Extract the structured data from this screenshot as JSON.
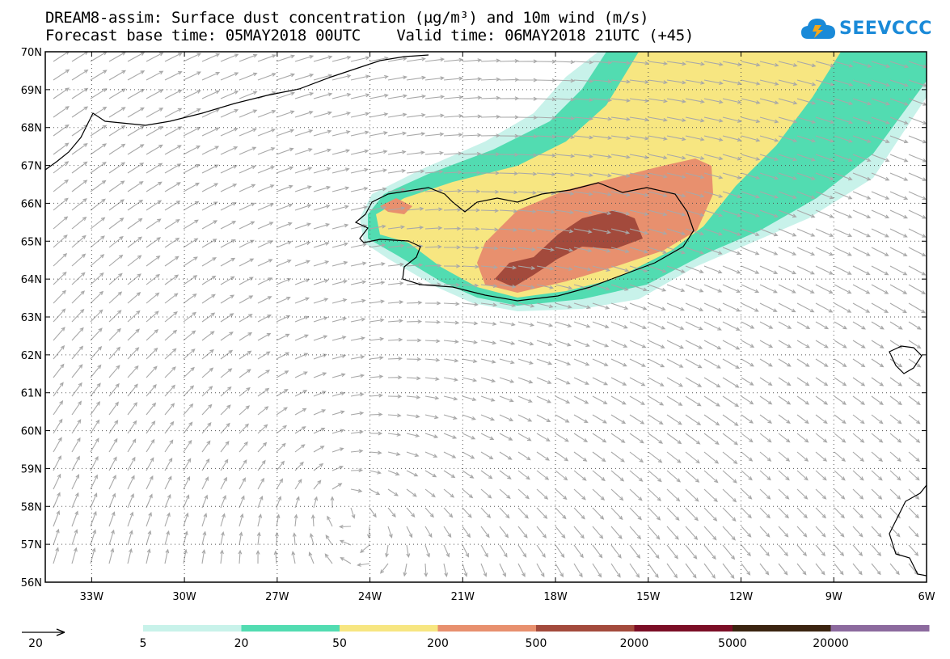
{
  "title": {
    "line1": "DREAM8-assim: Surface dust concentration (µg/m³) and 10m wind (m/s)",
    "line2": "Forecast base time: 05MAY2018 00UTC    Valid time: 06MAY2018 21UTC (+45)"
  },
  "logo": {
    "text": "SEEVCCC",
    "icon": "cloud-logo-icon",
    "color": "#1a8ad8"
  },
  "axes": {
    "lat_labels": [
      "70N",
      "69N",
      "68N",
      "67N",
      "66N",
      "65N",
      "64N",
      "63N",
      "62N",
      "61N",
      "60N",
      "59N",
      "58N",
      "57N",
      "56N"
    ],
    "lon_labels": [
      "33W",
      "30W",
      "27W",
      "24W",
      "21W",
      "18W",
      "15W",
      "12W",
      "9W",
      "6W"
    ],
    "lat_range": [
      56,
      70
    ],
    "lon_range": [
      -34.5,
      -6
    ]
  },
  "legend": {
    "wind_ref_value": "20",
    "wind_ref_unit": "m/s",
    "bins": [
      {
        "label": "5",
        "color": "#c8f2ea"
      },
      {
        "label": "20",
        "color": "#52dcb1"
      },
      {
        "label": "50",
        "color": "#f7e681"
      },
      {
        "label": "200",
        "color": "#e8906e"
      },
      {
        "label": "500",
        "color": "#a34a3c"
      },
      {
        "label": "2000",
        "color": "#7b0e26"
      },
      {
        "label": "5000",
        "color": "#3b2410"
      },
      {
        "label": "20000",
        "color": "#8c6a9e"
      }
    ]
  },
  "colors": {
    "vector": "#a8a8a8",
    "coast": "#000000",
    "grid": "#555555"
  }
}
